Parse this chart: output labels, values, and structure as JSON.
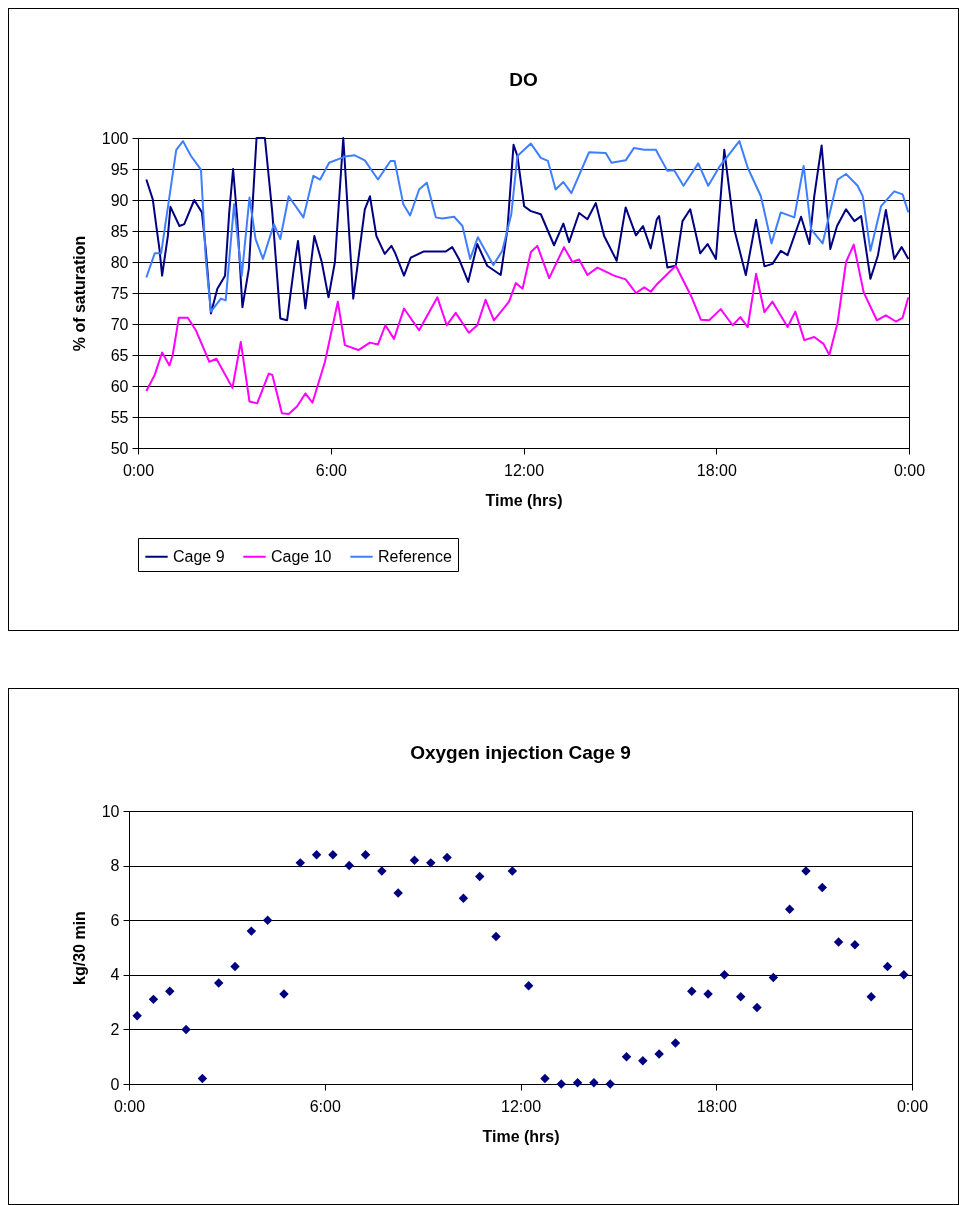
{
  "chart_data": [
    {
      "type": "line",
      "title": "DO",
      "xlabel": "Time (hrs)",
      "ylabel": "% of saturation",
      "xlim": [
        0,
        24
      ],
      "xticks": [
        {
          "value": 0,
          "label": "0:00"
        },
        {
          "value": 6,
          "label": "6:00"
        },
        {
          "value": 12,
          "label": "12:00"
        },
        {
          "value": 18,
          "label": "18:00"
        },
        {
          "value": 24,
          "label": "0:00"
        }
      ],
      "ylim": [
        50,
        100
      ],
      "yticks": [
        50,
        55,
        60,
        65,
        70,
        75,
        80,
        85,
        90,
        95,
        100
      ],
      "grid": "y",
      "legend": "bottom",
      "series": [
        {
          "name": "Cage 9",
          "color": "#000080",
          "x": [
            0.26,
            0.46,
            0.57,
            0.67,
            0.75,
            0.93,
            1.01,
            1.29,
            1.44,
            1.75,
            1.99,
            2.11,
            2.27,
            2.47,
            2.71,
            2.84,
            2.96,
            3.09,
            3.25,
            3.45,
            3.69,
            3.95,
            4.18,
            4.43,
            4.64,
            4.85,
            4.98,
            5.21,
            5.49,
            5.72,
            5.93,
            6.13,
            6.39,
            6.7,
            7.06,
            7.22,
            7.42,
            7.68,
            7.89,
            8.0,
            8.28,
            8.49,
            8.9,
            9.58,
            9.78,
            9.99,
            10.28,
            10.56,
            10.87,
            11.29,
            11.5,
            11.69,
            11.81,
            12.02,
            12.23,
            12.54,
            12.95,
            13.24,
            13.42,
            13.73,
            13.99,
            14.25,
            14.51,
            14.9,
            15.18,
            15.5,
            15.72,
            15.96,
            16.15,
            16.22,
            16.48,
            16.74,
            16.95,
            17.19,
            17.5,
            17.73,
            17.99,
            18.25,
            18.56,
            18.92,
            19.24,
            19.5,
            19.75,
            20.01,
            20.22,
            20.64,
            20.9,
            21.05,
            21.28,
            21.55,
            21.76,
            22.04,
            22.3,
            22.51,
            22.8,
            23.03,
            23.28,
            23.54,
            23.77,
            23.98
          ],
          "values": [
            93.3,
            90.1,
            85.8,
            82,
            77.8,
            84.2,
            88.9,
            85.8,
            86.1,
            90,
            88,
            82,
            71.7,
            75.7,
            77.8,
            88,
            95,
            86.9,
            72.7,
            78.9,
            100,
            100,
            88,
            70.9,
            70.6,
            78.9,
            83.4,
            72.5,
            84.2,
            80,
            74.3,
            80,
            100,
            74.1,
            88.5,
            90.6,
            84.2,
            81.3,
            82.6,
            81.5,
            77.8,
            80.7,
            81.7,
            81.7,
            82.4,
            80.5,
            76.8,
            82.9,
            79.4,
            77.9,
            85.3,
            98.9,
            97.1,
            89,
            88.2,
            87.7,
            82.7,
            86.2,
            83.2,
            87.9,
            86.9,
            89.5,
            84.2,
            80.2,
            88.8,
            84.3,
            85.8,
            82.2,
            86.9,
            87.4,
            79.1,
            79.4,
            86.6,
            88.5,
            81.4,
            82.9,
            80.5,
            98.1,
            85.3,
            77.9,
            86.8,
            79.3,
            79.7,
            81.8,
            81.1,
            87.3,
            82.9,
            90.6,
            98.8,
            82.1,
            85.8,
            88.5,
            86.6,
            87.4,
            77.3,
            81,
            88.4,
            80.5,
            82.4,
            80.5
          ]
        },
        {
          "name": "Cage 10",
          "color": "#ff00ff",
          "x": [
            0.26,
            0.52,
            0.75,
            0.98,
            1.08,
            1.27,
            1.55,
            1.8,
            2.22,
            2.44,
            2.94,
            3.2,
            3.47,
            3.71,
            4.07,
            4.18,
            4.48,
            4.69,
            4.95,
            5.21,
            5.43,
            5.82,
            6.22,
            6.44,
            6.86,
            7.22,
            7.47,
            7.7,
            7.97,
            8.28,
            8.75,
            9.32,
            9.61,
            9.89,
            10.3,
            10.56,
            10.82,
            11.08,
            11.55,
            11.76,
            11.97,
            12.23,
            12.43,
            12.8,
            13.26,
            13.52,
            13.73,
            13.99,
            14.3,
            14.82,
            15.18,
            15.5,
            15.76,
            15.96,
            16.17,
            16.74,
            17.21,
            17.52,
            17.78,
            18.14,
            18.51,
            18.75,
            18.98,
            19.24,
            19.5,
            19.75,
            20.22,
            20.46,
            20.74,
            21.05,
            21.34,
            21.52,
            21.78,
            22.04,
            22.28,
            22.59,
            23.0,
            23.28,
            23.59,
            23.8,
            23.98
          ],
          "values": [
            59.2,
            61.8,
            65.4,
            63.3,
            65,
            71,
            71,
            69,
            63.9,
            64.4,
            59.7,
            67.1,
            57.5,
            57.2,
            62,
            61.8,
            55.6,
            55.5,
            56.7,
            58.8,
            57.3,
            63.9,
            73.6,
            66.6,
            65.8,
            67,
            66.7,
            69.8,
            67.6,
            72.5,
            69,
            74.3,
            69.8,
            71.8,
            68.6,
            69.8,
            73.9,
            70.6,
            73.6,
            76.6,
            75.7,
            81.6,
            82.6,
            77.4,
            82.4,
            80,
            80.4,
            77.9,
            79.1,
            77.8,
            77.2,
            75,
            75.9,
            75.2,
            76.5,
            79.4,
            74.6,
            70.7,
            70.6,
            72.4,
            69.8,
            71.1,
            69.5,
            78.1,
            71.9,
            73.6,
            69.5,
            72,
            67.4,
            67.9,
            66.8,
            65,
            70.3,
            80,
            82.8,
            75.1,
            70.6,
            71.4,
            70.4,
            71,
            74.3
          ]
        },
        {
          "name": "Reference",
          "color": "#3f7fff",
          "x": [
            0.26,
            0.52,
            0.72,
            0.98,
            1.19,
            1.4,
            1.65,
            1.96,
            2.11,
            2.27,
            2.58,
            2.73,
            2.99,
            3.23,
            3.47,
            3.66,
            3.89,
            4.23,
            4.43,
            4.69,
            5.15,
            5.46,
            5.67,
            5.95,
            6.44,
            6.75,
            7.06,
            7.47,
            7.86,
            7.99,
            8.26,
            8.47,
            8.75,
            8.99,
            9.27,
            9.47,
            9.84,
            10.1,
            10.34,
            10.58,
            11.06,
            11.34,
            11.62,
            11.81,
            12.23,
            12.54,
            12.76,
            13.0,
            13.24,
            13.49,
            14.04,
            14.56,
            14.74,
            15.18,
            15.44,
            15.76,
            16.12,
            16.48,
            16.69,
            16.98,
            17.44,
            17.75,
            18.09,
            18.72,
            18.98,
            19.39,
            19.72,
            20.01,
            20.43,
            20.72,
            20.95,
            21.31,
            21.78,
            22.04,
            22.4,
            22.56,
            22.8,
            23.13,
            23.54,
            23.8,
            23.98
          ],
          "values": [
            77.5,
            81.4,
            81.4,
            90.6,
            98.1,
            99.5,
            97.1,
            94.9,
            80.5,
            72,
            74.1,
            73.8,
            89.3,
            77.8,
            90.4,
            83.7,
            80.5,
            86.1,
            83.7,
            90.6,
            87.2,
            93.9,
            93.3,
            96,
            97,
            97.2,
            96.4,
            93.3,
            96.3,
            96.3,
            89.3,
            87.5,
            91.7,
            92.8,
            87.2,
            87,
            87.3,
            85.8,
            80.5,
            84,
            79.5,
            81.8,
            87.7,
            97.1,
            99.1,
            96.8,
            96.3,
            91.7,
            92.9,
            91.1,
            97.7,
            97.6,
            96,
            96.4,
            98.4,
            98.1,
            98.1,
            94.7,
            94.8,
            92.3,
            95.9,
            92.3,
            95.3,
            99.5,
            95.2,
            90.6,
            83,
            88,
            87.2,
            95.5,
            85.3,
            83,
            93.3,
            94.2,
            92.3,
            90.6,
            81.8,
            89,
            91.4,
            90.9,
            88
          ]
        }
      ]
    },
    {
      "type": "scatter",
      "title": "Oxygen injection Cage 9",
      "xlabel": "Time (hrs)",
      "ylabel": "kg/30 min",
      "xlim": [
        0,
        24
      ],
      "xticks": [
        {
          "value": 0,
          "label": "0:00"
        },
        {
          "value": 6,
          "label": "6:00"
        },
        {
          "value": 12,
          "label": "12:00"
        },
        {
          "value": 18,
          "label": "18:00"
        },
        {
          "value": 24,
          "label": "0:00"
        }
      ],
      "ylim": [
        0,
        10
      ],
      "yticks": [
        0,
        2,
        4,
        6,
        8,
        10
      ],
      "grid": "y",
      "marker": "diamond",
      "series": [
        {
          "color": "#000080",
          "x": [
            0.25,
            0.75,
            1.25,
            1.75,
            2.25,
            2.75,
            3.25,
            3.75,
            4.25,
            4.75,
            5.25,
            5.75,
            6.25,
            6.75,
            7.25,
            7.75,
            8.25,
            8.75,
            9.25,
            9.75,
            10.25,
            10.75,
            11.25,
            11.75,
            12.25,
            12.75,
            13.25,
            13.75,
            14.25,
            14.75,
            15.25,
            15.75,
            16.25,
            16.75,
            17.25,
            17.75,
            18.25,
            18.75,
            19.25,
            19.75,
            20.25,
            20.75,
            21.25,
            21.75,
            22.25,
            22.75,
            23.25,
            23.75
          ],
          "values": [
            2.5,
            3.1,
            3.4,
            2.0,
            0.2,
            3.7,
            4.3,
            5.6,
            6.0,
            3.3,
            8.1,
            8.4,
            8.4,
            8.0,
            8.4,
            7.8,
            7.0,
            8.2,
            8.1,
            8.3,
            6.8,
            7.6,
            5.4,
            7.8,
            3.6,
            0.2,
            0.0,
            0.05,
            0.05,
            0.0,
            1.0,
            0.85,
            1.1,
            1.5,
            3.4,
            3.3,
            4.0,
            3.2,
            2.8,
            3.9,
            6.4,
            7.8,
            7.2,
            5.2,
            5.1,
            3.2,
            4.3,
            4.0
          ]
        }
      ]
    }
  ]
}
